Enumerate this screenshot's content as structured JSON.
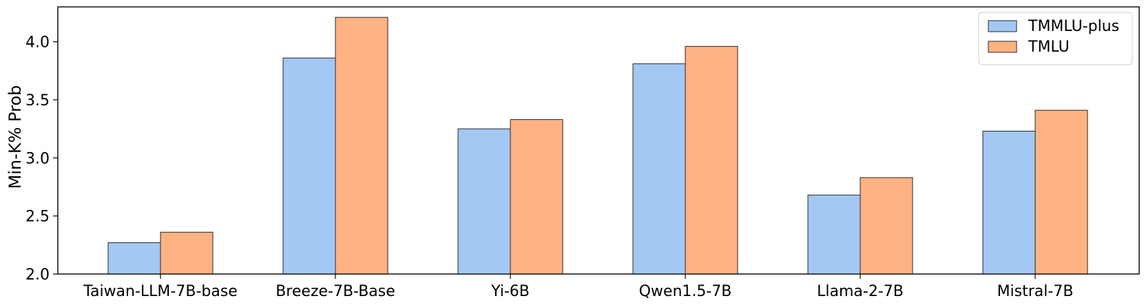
{
  "chart_data": {
    "type": "bar",
    "categories": [
      "Taiwan-LLM-7B-base",
      "Breeze-7B-Base",
      "Yi-6B",
      "Qwen1.5-7B",
      "Llama-2-7B",
      "Mistral-7B"
    ],
    "series": [
      {
        "name": "TMMLU-plus",
        "color": "#a3c8f3",
        "values": [
          2.27,
          3.86,
          3.25,
          3.81,
          2.68,
          3.23
        ]
      },
      {
        "name": "TMLU",
        "color": "#ffb282",
        "values": [
          2.36,
          4.21,
          3.33,
          3.96,
          2.83,
          3.41
        ]
      }
    ],
    "xlabel": "",
    "ylabel": "Min-K% Prob",
    "ylim": [
      2.0,
      4.3
    ],
    "yticks": [
      "2.0",
      "2.5",
      "3.0",
      "3.5",
      "4.0"
    ],
    "grid": false,
    "legend_position": "top-right"
  }
}
